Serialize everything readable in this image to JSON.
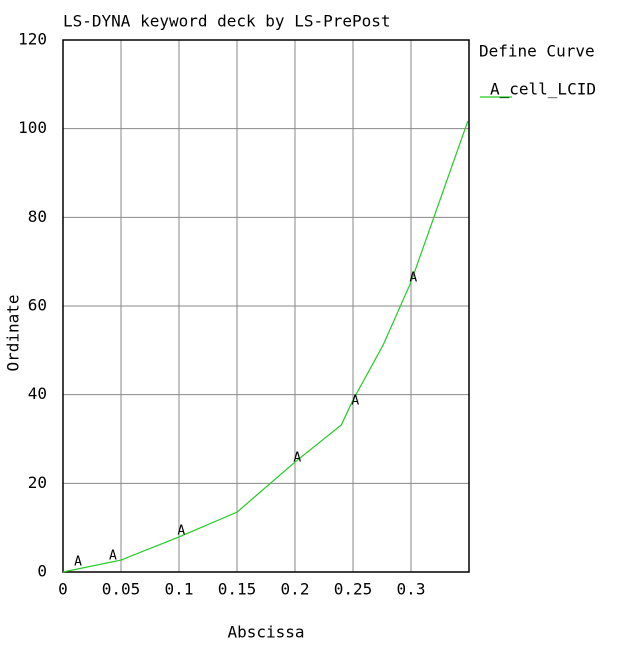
{
  "chart_data": {
    "type": "line",
    "title": "LS-DYNA keyword deck by LS-PrePost",
    "xlabel": "Abscissa",
    "ylabel": "Ordinate",
    "legend_title": "Define Curve",
    "legend": "top-right",
    "xlim": [
      0,
      0.35
    ],
    "xticks": [
      0,
      0.05,
      0.1,
      0.15,
      0.2,
      0.25,
      0.3
    ],
    "ylim": [
      0,
      120
    ],
    "yticks": [
      0,
      20,
      40,
      60,
      80,
      100,
      120
    ],
    "grid": true,
    "series": [
      {
        "name": "A_cell_LCID",
        "color": "#22cc22",
        "marker": "A",
        "x": [
          0,
          0.05,
          0.1,
          0.15,
          0.2,
          0.24,
          0.25,
          0.276,
          0.3,
          0.349
        ],
        "values": [
          0,
          2.7,
          7.9,
          13.5,
          24.8,
          33.2,
          38.8,
          51.2,
          65.4,
          101.7
        ],
        "marker_x": [
          0.013,
          0.043,
          0.102,
          0.202,
          0.252,
          0.302
        ],
        "marker_y": [
          2.3,
          3.6,
          9.2,
          25.7,
          38.6,
          66.3
        ]
      }
    ]
  }
}
